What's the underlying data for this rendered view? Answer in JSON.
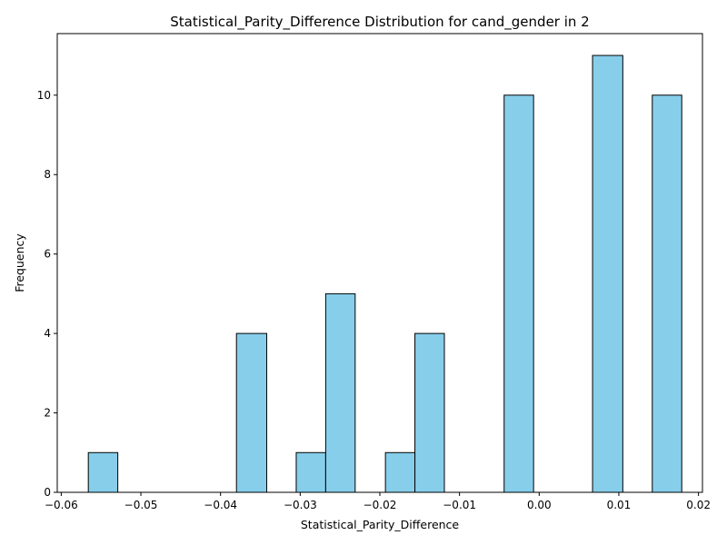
{
  "chart_data": {
    "type": "bar",
    "title": "Statistical_Parity_Difference Distribution for cand_gender in 2",
    "xlabel": "Statistical_Parity_Difference",
    "ylabel": "Frequency",
    "xlim": [
      -0.0605,
      0.0205
    ],
    "ylim": [
      0,
      11.55
    ],
    "xticks": [
      -0.06,
      -0.05,
      -0.04,
      -0.03,
      -0.02,
      -0.01,
      0.0,
      0.01,
      0.02
    ],
    "xtick_labels": [
      "−0.06",
      "−0.05",
      "−0.04",
      "−0.03",
      "−0.02",
      "−0.01",
      "0.00",
      "0.01",
      "0.02"
    ],
    "yticks": [
      0,
      2,
      4,
      6,
      8,
      10
    ],
    "ytick_labels": [
      "0",
      "2",
      "4",
      "6",
      "8",
      "10"
    ],
    "grid": false,
    "bar_color": "#87ceeb",
    "edge_color": "#000000",
    "bins": [
      {
        "x0": -0.0566,
        "x1": -0.0529,
        "count": 1
      },
      {
        "x0": -0.0529,
        "x1": -0.0491,
        "count": 0
      },
      {
        "x0": -0.0491,
        "x1": -0.0454,
        "count": 0
      },
      {
        "x0": -0.0454,
        "x1": -0.0417,
        "count": 0
      },
      {
        "x0": -0.0417,
        "x1": -0.038,
        "count": 0
      },
      {
        "x0": -0.038,
        "x1": -0.0342,
        "count": 4
      },
      {
        "x0": -0.0342,
        "x1": -0.0305,
        "count": 0
      },
      {
        "x0": -0.0305,
        "x1": -0.0268,
        "count": 1
      },
      {
        "x0": -0.0268,
        "x1": -0.0231,
        "count": 5
      },
      {
        "x0": -0.0231,
        "x1": -0.0193,
        "count": 0
      },
      {
        "x0": -0.0193,
        "x1": -0.0156,
        "count": 1
      },
      {
        "x0": -0.0156,
        "x1": -0.0119,
        "count": 4
      },
      {
        "x0": -0.0119,
        "x1": -0.0082,
        "count": 0
      },
      {
        "x0": -0.0082,
        "x1": -0.0044,
        "count": 0
      },
      {
        "x0": -0.0044,
        "x1": -0.0007,
        "count": 10
      },
      {
        "x0": -0.0007,
        "x1": 0.003,
        "count": 0
      },
      {
        "x0": 0.003,
        "x1": 0.0067,
        "count": 0
      },
      {
        "x0": 0.0067,
        "x1": 0.0105,
        "count": 11
      },
      {
        "x0": 0.0105,
        "x1": 0.0142,
        "count": 0
      },
      {
        "x0": 0.0142,
        "x1": 0.0179,
        "count": 10
      }
    ]
  }
}
